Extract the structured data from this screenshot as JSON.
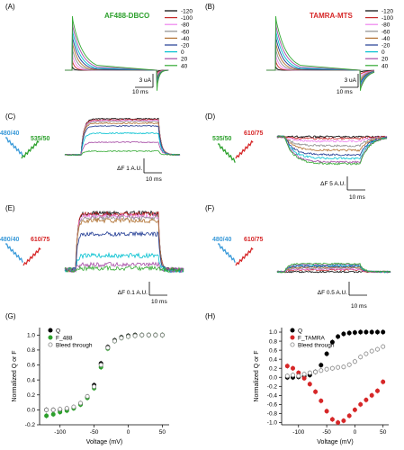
{
  "figure": {
    "panel_letters": [
      "(A)",
      "(B)",
      "(C)",
      "(D)",
      "(E)",
      "(F)",
      "(G)",
      "(H)"
    ]
  },
  "voltage_colors": {
    "-120": "#000000",
    "-100": "#c62828",
    "-80": "#ee82ee",
    "-60": "#8d8d8d",
    "-40": "#b07030",
    "-20": "#1f3a93",
    "0": "#00c0d0",
    "20": "#a64ca6",
    "40": "#33aa33"
  },
  "colors": {
    "af488_label": "#2ca02c",
    "tamra_label": "#d62728",
    "wave_blue": "#3a9ad9",
    "wave_green": "#2ca02c",
    "wave_red": "#d62728",
    "q_series": "#000000",
    "f488_series": "#2ca02c",
    "ftamra_series": "#d62728",
    "bleed_series": "#999999"
  },
  "panel_A": {
    "label": "AF488-DBCO",
    "legend": [
      "-120",
      "-100",
      "-80",
      "-60",
      "-40",
      "-20",
      "0",
      "20",
      "40"
    ],
    "scale_y": "3 uA",
    "scale_x": "10 ms"
  },
  "panel_B": {
    "label": "TAMRA-MTS",
    "legend": [
      "-120",
      "-100",
      "-80",
      "-60",
      "-40",
      "-20",
      "0",
      "20",
      "40"
    ],
    "scale_y": "3 uA",
    "scale_x": "10 ms"
  },
  "panel_C": {
    "ex": "480/40",
    "em": "535/50",
    "scale_y": "ΔF 1 A.U.",
    "scale_x": "10 ms"
  },
  "panel_D": {
    "ex": "535/50",
    "em": "610/75",
    "scale_y": "ΔF 5 A.U.",
    "scale_x": "10 ms"
  },
  "panel_E": {
    "ex": "480/40",
    "em": "610/75",
    "scale_y": "ΔF 0.1 A.U.",
    "scale_x": "10 ms"
  },
  "panel_F": {
    "ex": "480/40",
    "em": "610/75",
    "scale_y": "ΔF 0.5 A.U.",
    "scale_x": "10 ms"
  },
  "chart_data": [
    {
      "panel": "(G)",
      "type": "scatter",
      "xlabel": "Voltage (mV)",
      "ylabel": "Normalized Q or F",
      "xlim": [
        -130,
        60
      ],
      "ylim": [
        -0.2,
        1.1
      ],
      "xticks": [
        "-100",
        "-50",
        "0",
        "50"
      ],
      "yticks": [
        "-0.2",
        "0.0",
        "0.2",
        "0.4",
        "0.6",
        "0.8",
        "1.0"
      ],
      "legend_position": "top-left",
      "series": [
        {
          "name": "Q",
          "marker": "circle-filled",
          "color": "#000000",
          "x": [
            -120,
            -110,
            -100,
            -90,
            -80,
            -70,
            -60,
            -50,
            -40,
            -30,
            -20,
            -10,
            0,
            10,
            20,
            30,
            40,
            50
          ],
          "y": [
            0.0,
            0.0,
            0.0,
            0.01,
            0.03,
            0.08,
            0.17,
            0.33,
            0.62,
            0.84,
            0.93,
            0.97,
            0.99,
            1.0,
            1.0,
            1.0,
            1.0,
            1.0
          ]
        },
        {
          "name": "F_488",
          "marker": "circle-filled",
          "color": "#2ca02c",
          "x": [
            -120,
            -110,
            -100,
            -90,
            -80,
            -70,
            -60,
            -50,
            -40,
            -30,
            -20,
            -10,
            0,
            10,
            20,
            30,
            40,
            50
          ],
          "y": [
            -0.08,
            -0.06,
            -0.03,
            -0.01,
            0.02,
            0.07,
            0.16,
            0.29,
            0.57,
            0.82,
            0.92,
            0.96,
            0.98,
            0.99,
            1.0,
            1.0,
            1.0,
            1.0
          ]
        },
        {
          "name": "Bleed through",
          "marker": "circle-open",
          "color": "#999999",
          "x": [
            -120,
            -110,
            -100,
            -90,
            -80,
            -70,
            -60,
            -50,
            -40,
            -30,
            -20,
            -10,
            0,
            10,
            20,
            30,
            40,
            50
          ],
          "y": [
            0.0,
            0.0,
            0.01,
            0.02,
            0.04,
            0.09,
            0.18,
            0.31,
            0.6,
            0.83,
            0.92,
            0.96,
            0.98,
            0.99,
            1.0,
            1.0,
            1.0,
            1.0
          ]
        }
      ]
    },
    {
      "panel": "(H)",
      "type": "scatter",
      "xlabel": "Voltage (mV)",
      "ylabel": "Normalized Q or F",
      "xlim": [
        -130,
        60
      ],
      "ylim": [
        -1.05,
        1.1
      ],
      "xticks": [
        "-100",
        "-50",
        "0",
        "50"
      ],
      "yticks": [
        "-1.0",
        "-0.8",
        "-0.6",
        "-0.4",
        "-0.2",
        "0.0",
        "0.2",
        "0.4",
        "0.6",
        "0.8",
        "1.0"
      ],
      "legend_position": "top-left",
      "series": [
        {
          "name": "Q",
          "marker": "circle-filled",
          "color": "#000000",
          "x": [
            -120,
            -110,
            -100,
            -90,
            -80,
            -70,
            -60,
            -50,
            -40,
            -30,
            -20,
            -10,
            0,
            10,
            20,
            30,
            40,
            50
          ],
          "y": [
            0.0,
            0.0,
            0.01,
            0.02,
            0.05,
            0.12,
            0.27,
            0.52,
            0.78,
            0.9,
            0.96,
            0.98,
            0.99,
            1.0,
            1.0,
            1.0,
            1.0,
            1.0
          ]
        },
        {
          "name": "F_TAMRA",
          "marker": "circle-filled",
          "color": "#d62728",
          "x": [
            -120,
            -110,
            -100,
            -90,
            -80,
            -70,
            -60,
            -50,
            -40,
            -30,
            -20,
            -10,
            0,
            10,
            20,
            30,
            40,
            50
          ],
          "y": [
            0.25,
            0.2,
            0.1,
            -0.02,
            -0.15,
            -0.32,
            -0.52,
            -0.75,
            -0.93,
            -1.0,
            -0.96,
            -0.85,
            -0.72,
            -0.6,
            -0.5,
            -0.4,
            -0.3,
            -0.1
          ]
        },
        {
          "name": "Bleed through",
          "marker": "circle-open",
          "color": "#999999",
          "x": [
            -120,
            -110,
            -100,
            -90,
            -80,
            -70,
            -60,
            -50,
            -40,
            -30,
            -20,
            -10,
            0,
            10,
            20,
            30,
            40,
            50
          ],
          "y": [
            0.03,
            0.05,
            0.03,
            0.07,
            0.1,
            0.12,
            0.15,
            0.18,
            0.2,
            0.22,
            0.23,
            0.28,
            0.35,
            0.45,
            0.52,
            0.58,
            0.62,
            0.68
          ]
        }
      ]
    }
  ]
}
